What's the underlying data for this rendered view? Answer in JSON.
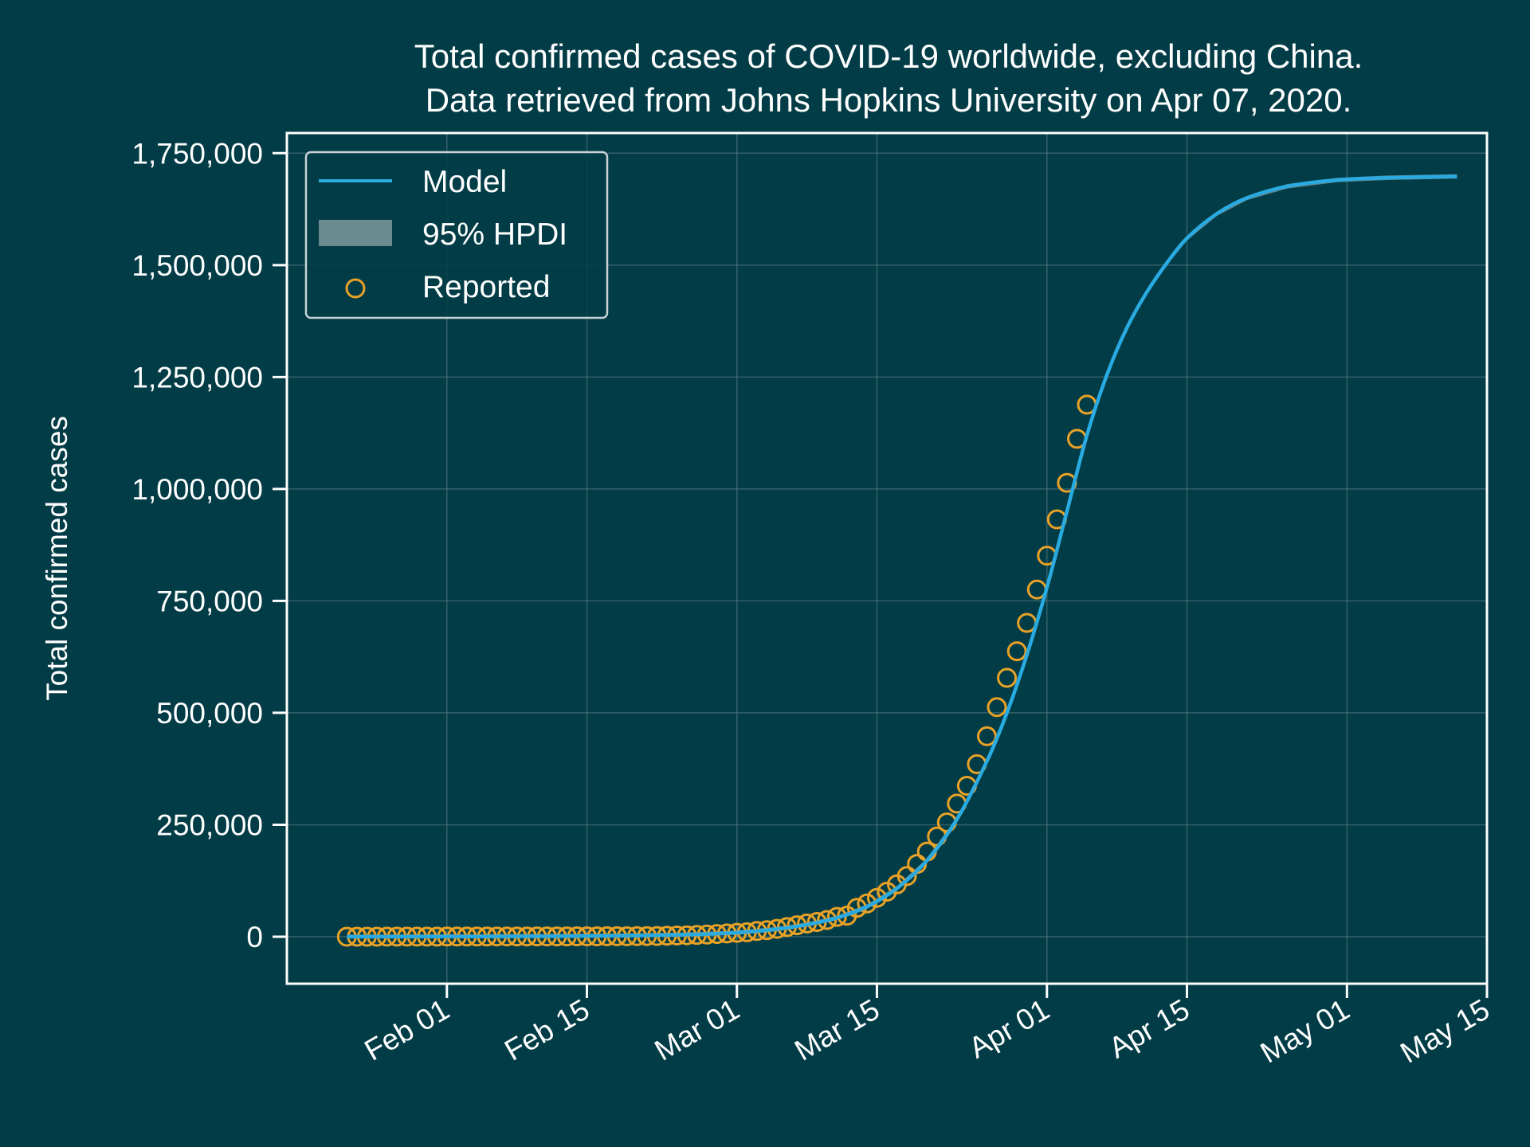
{
  "colors": {
    "background": "#023c46",
    "axis": "#ffffff",
    "grid": "#5f7f87",
    "model": "#29abe2",
    "band": "#6b8a90",
    "reported": "#e9a227"
  },
  "chart_data": {
    "type": "line",
    "title_line1": "Total confirmed cases of COVID-19 worldwide, excluding China.",
    "title_line2": "Data retrieved from Johns Hopkins University on Apr 07, 2020.",
    "xlabel": "",
    "ylabel": "Total confirmed cases",
    "x_range": [
      "2020-01-16",
      "2020-05-15"
    ],
    "y_range": [
      -105000,
      1795000
    ],
    "grid": true,
    "legend_position": "top-left",
    "legend": [
      "Model",
      "95% HPDI",
      "Reported"
    ],
    "x_ticks": [
      {
        "date": "2020-02-01",
        "label": "Feb 01"
      },
      {
        "date": "2020-02-15",
        "label": "Feb 15"
      },
      {
        "date": "2020-03-01",
        "label": "Mar 01"
      },
      {
        "date": "2020-03-15",
        "label": "Mar 15"
      },
      {
        "date": "2020-04-01",
        "label": "Apr 01"
      },
      {
        "date": "2020-04-15",
        "label": "Apr 15"
      },
      {
        "date": "2020-05-01",
        "label": "May 01"
      },
      {
        "date": "2020-05-15",
        "label": "May 15"
      }
    ],
    "y_ticks": [
      {
        "value": 0,
        "label": "0"
      },
      {
        "value": 250000,
        "label": "250,000"
      },
      {
        "value": 500000,
        "label": "500,000"
      },
      {
        "value": 750000,
        "label": "750,000"
      },
      {
        "value": 1000000,
        "label": "1,000,000"
      },
      {
        "value": 1250000,
        "label": "1,250,000"
      },
      {
        "value": 1500000,
        "label": "1,500,000"
      },
      {
        "value": 1750000,
        "label": "1,750,000"
      }
    ],
    "model": [
      [
        "2020-01-22",
        0
      ],
      [
        "2020-02-01",
        300
      ],
      [
        "2020-02-10",
        800
      ],
      [
        "2020-02-20",
        2500
      ],
      [
        "2020-02-25",
        4500
      ],
      [
        "2020-03-01",
        9000
      ],
      [
        "2020-03-05",
        17000
      ],
      [
        "2020-03-08",
        27000
      ],
      [
        "2020-03-11",
        42000
      ],
      [
        "2020-03-14",
        67000
      ],
      [
        "2020-03-17",
        108000
      ],
      [
        "2020-03-20",
        170000
      ],
      [
        "2020-03-23",
        262000
      ],
      [
        "2020-03-26",
        392000
      ],
      [
        "2020-03-28",
        500000
      ],
      [
        "2020-03-30",
        630000
      ],
      [
        "2020-04-01",
        780000
      ],
      [
        "2020-04-03",
        950000
      ],
      [
        "2020-04-05",
        1120000
      ],
      [
        "2020-04-07",
        1255000
      ],
      [
        "2020-04-09",
        1360000
      ],
      [
        "2020-04-11",
        1440000
      ],
      [
        "2020-04-13",
        1505000
      ],
      [
        "2020-04-15",
        1560000
      ],
      [
        "2020-04-18",
        1615000
      ],
      [
        "2020-04-21",
        1650000
      ],
      [
        "2020-04-25",
        1676000
      ],
      [
        "2020-04-30",
        1690000
      ],
      [
        "2020-05-05",
        1695000
      ],
      [
        "2020-05-12",
        1698000
      ]
    ],
    "band_halfwidth": 5000,
    "reported": [
      [
        "2020-01-22",
        0
      ],
      [
        "2020-01-23",
        10
      ],
      [
        "2020-01-24",
        20
      ],
      [
        "2020-01-25",
        40
      ],
      [
        "2020-01-26",
        60
      ],
      [
        "2020-01-27",
        80
      ],
      [
        "2020-01-28",
        120
      ],
      [
        "2020-01-29",
        140
      ],
      [
        "2020-01-30",
        160
      ],
      [
        "2020-01-31",
        200
      ],
      [
        "2020-02-01",
        250
      ],
      [
        "2020-02-02",
        280
      ],
      [
        "2020-02-03",
        320
      ],
      [
        "2020-02-04",
        360
      ],
      [
        "2020-02-05",
        400
      ],
      [
        "2020-02-06",
        440
      ],
      [
        "2020-02-07",
        480
      ],
      [
        "2020-02-08",
        520
      ],
      [
        "2020-02-09",
        560
      ],
      [
        "2020-02-10",
        600
      ],
      [
        "2020-02-11",
        650
      ],
      [
        "2020-02-12",
        700
      ],
      [
        "2020-02-13",
        750
      ],
      [
        "2020-02-14",
        800
      ],
      [
        "2020-02-15",
        850
      ],
      [
        "2020-02-16",
        900
      ],
      [
        "2020-02-17",
        950
      ],
      [
        "2020-02-18",
        1000
      ],
      [
        "2020-02-19",
        1050
      ],
      [
        "2020-02-20",
        1150
      ],
      [
        "2020-02-21",
        1300
      ],
      [
        "2020-02-22",
        1600
      ],
      [
        "2020-02-23",
        2100
      ],
      [
        "2020-02-24",
        2600
      ],
      [
        "2020-02-25",
        3200
      ],
      [
        "2020-02-26",
        3900
      ],
      [
        "2020-02-27",
        4800
      ],
      [
        "2020-02-28",
        6100
      ],
      [
        "2020-02-29",
        7300
      ],
      [
        "2020-03-01",
        8700
      ],
      [
        "2020-03-02",
        10000
      ],
      [
        "2020-03-03",
        12700
      ],
      [
        "2020-03-04",
        14600
      ],
      [
        "2020-03-05",
        17600
      ],
      [
        "2020-03-06",
        21500
      ],
      [
        "2020-03-07",
        25500
      ],
      [
        "2020-03-08",
        29500
      ],
      [
        "2020-03-09",
        32800
      ],
      [
        "2020-03-10",
        37400
      ],
      [
        "2020-03-11",
        44300
      ],
      [
        "2020-03-12",
        47000
      ],
      [
        "2020-03-13",
        64400
      ],
      [
        "2020-03-14",
        74200
      ],
      [
        "2020-03-15",
        86700
      ],
      [
        "2020-03-16",
        100400
      ],
      [
        "2020-03-17",
        116900
      ],
      [
        "2020-03-18",
        135600
      ],
      [
        "2020-03-19",
        162500
      ],
      [
        "2020-03-20",
        190100
      ],
      [
        "2020-03-21",
        224000
      ],
      [
        "2020-03-22",
        255200
      ],
      [
        "2020-03-23",
        297300
      ],
      [
        "2020-03-24",
        337000
      ],
      [
        "2020-03-25",
        385300
      ],
      [
        "2020-03-26",
        447700
      ],
      [
        "2020-03-27",
        512600
      ],
      [
        "2020-03-28",
        578100
      ],
      [
        "2020-03-29",
        637500
      ],
      [
        "2020-03-30",
        700900
      ],
      [
        "2020-03-31",
        775500
      ],
      [
        "2020-04-01",
        851100
      ],
      [
        "2020-04-02",
        932100
      ],
      [
        "2020-04-03",
        1013600
      ],
      [
        "2020-04-04",
        1112100
      ],
      [
        "2020-04-05",
        1188400
      ]
    ]
  }
}
